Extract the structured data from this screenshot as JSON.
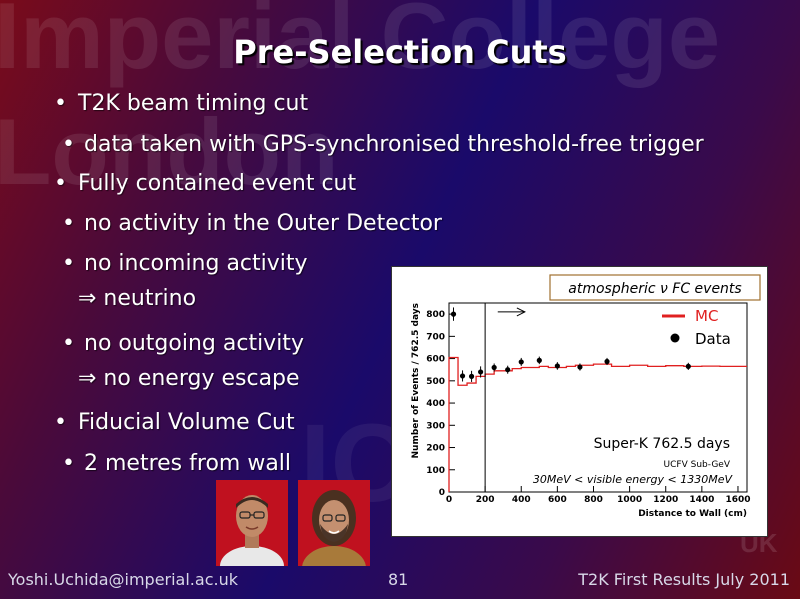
{
  "slide": {
    "title": "Pre-Selection Cuts",
    "watermark_line1": "Imperial College",
    "watermark_line2": "London",
    "watermark_logo": "IC",
    "watermark_uk": "UK",
    "bullets": {
      "b1": "T2K beam timing cut",
      "b1_sub": "data taken with GPS-synchronised threshold-free trigger",
      "b2": "Fully contained event cut",
      "b2_sub1": "no activity in the Outer Detector",
      "b2_sub2": "no incoming activity",
      "b2_sub2_implies": "⇒ neutrino",
      "b2_sub3": "no outgoing activity",
      "b2_sub3_implies": "⇒ no energy escape",
      "b3": "Fiducial Volume Cut",
      "b3_sub": "2 metres from wall",
      "bullet_char": "•"
    },
    "footer": {
      "email": "Yoshi.Uchida@imperial.ac.uk",
      "page": "81",
      "event": "T2K First Results July 2011"
    }
  },
  "chart_data": {
    "type": "line",
    "title": "atmospheric ν FC events",
    "xlabel": "Distance to Wall (cm)",
    "ylabel": "Number of Events / 762.5 days",
    "xlim": [
      0,
      1650
    ],
    "ylim": [
      0,
      850
    ],
    "xticks": [
      0,
      200,
      400,
      600,
      800,
      1000,
      1200,
      1400,
      1600
    ],
    "yticks": [
      0,
      100,
      200,
      300,
      400,
      500,
      600,
      700,
      800
    ],
    "annotation_exposure": "Super-K 762.5 days",
    "annotation_sample": "UCFV Sub-GeV",
    "annotation_energy": "30MeV < visible energy < 1330MeV",
    "cut_line_x": 200,
    "cut_arrow_from_x": 270,
    "cut_arrow_to_x": 420,
    "cut_arrow_y": 810,
    "legend": [
      {
        "label": "MC",
        "kind": "line",
        "color": "#e02020"
      },
      {
        "label": "Data",
        "kind": "marker",
        "color": "#000000"
      }
    ],
    "series": [
      {
        "name": "MC",
        "kind": "step",
        "color": "#e02020",
        "x_edges": [
          0,
          50,
          100,
          150,
          200,
          250,
          300,
          350,
          400,
          450,
          500,
          550,
          600,
          650,
          700,
          750,
          800,
          850,
          900,
          1000,
          1100,
          1200,
          1300,
          1400,
          1500,
          1650
        ],
        "values": [
          605,
          480,
          490,
          520,
          530,
          545,
          545,
          555,
          560,
          560,
          565,
          560,
          560,
          565,
          570,
          570,
          575,
          575,
          565,
          570,
          565,
          568,
          565,
          566,
          565
        ]
      },
      {
        "name": "Data",
        "kind": "points",
        "color": "#000000",
        "points": [
          {
            "x": 25,
            "y": 800,
            "err": 30
          },
          {
            "x": 75,
            "y": 522,
            "err": 25
          },
          {
            "x": 125,
            "y": 520,
            "err": 25
          },
          {
            "x": 175,
            "y": 540,
            "err": 25
          },
          {
            "x": 250,
            "y": 560,
            "err": 18
          },
          {
            "x": 325,
            "y": 550,
            "err": 18
          },
          {
            "x": 400,
            "y": 585,
            "err": 18
          },
          {
            "x": 500,
            "y": 592,
            "err": 17
          },
          {
            "x": 600,
            "y": 567,
            "err": 17
          },
          {
            "x": 725,
            "y": 562,
            "err": 16
          },
          {
            "x": 875,
            "y": 587,
            "err": 16
          },
          {
            "x": 1325,
            "y": 565,
            "err": 16
          }
        ]
      }
    ]
  }
}
